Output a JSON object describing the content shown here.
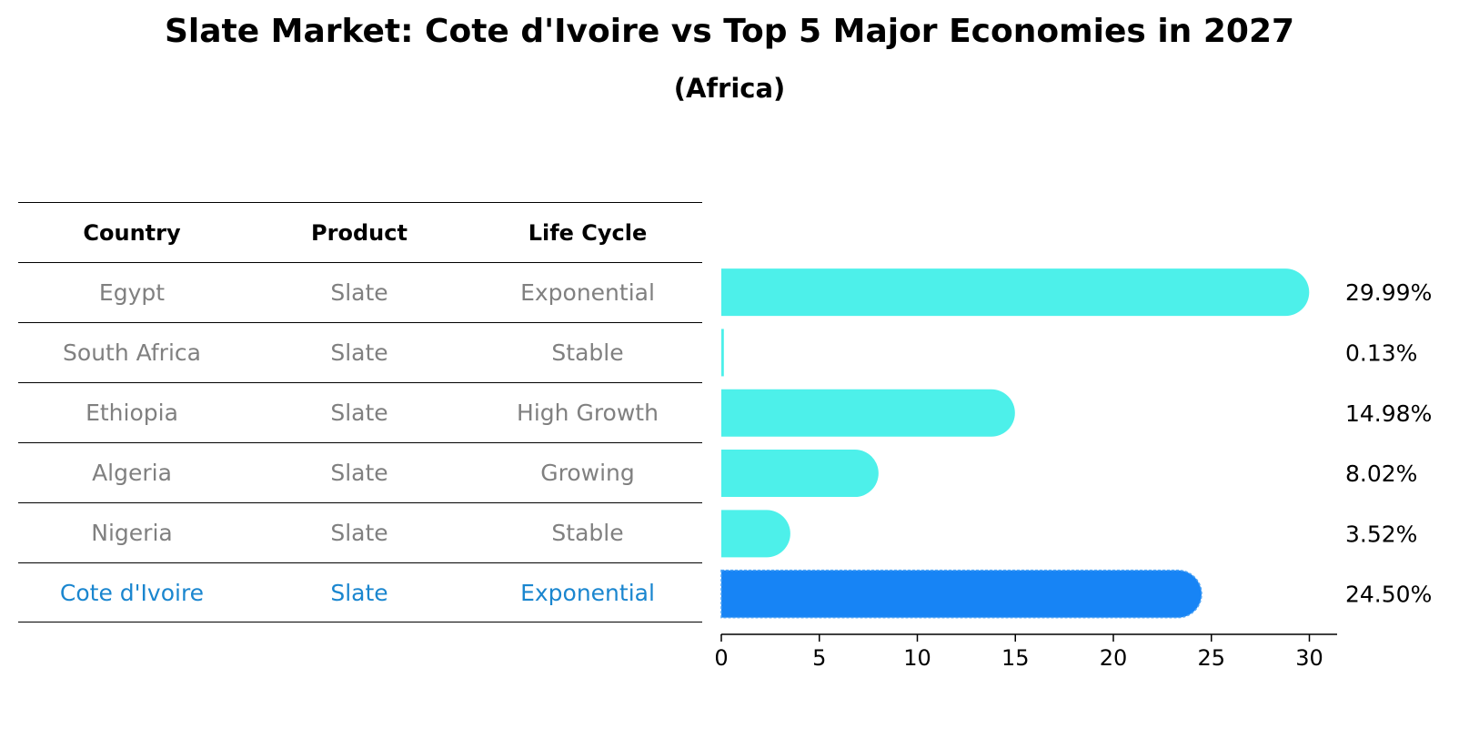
{
  "title": "Slate Market: Cote d'Ivoire vs Top 5 Major Economies in 2027",
  "subtitle": "(Africa)",
  "table": {
    "headers": [
      "Country",
      "Product",
      "Life Cycle"
    ],
    "rows": [
      {
        "country": "Egypt",
        "product": "Slate",
        "life_cycle": "Exponential"
      },
      {
        "country": "South Africa",
        "product": "Slate",
        "life_cycle": "Stable"
      },
      {
        "country": "Ethiopia",
        "product": "Slate",
        "life_cycle": "High Growth"
      },
      {
        "country": "Algeria",
        "product": "Slate",
        "life_cycle": "Growing"
      },
      {
        "country": "Nigeria",
        "product": "Slate",
        "life_cycle": "Stable"
      },
      {
        "country": "Cote d'Ivoire",
        "product": "Slate",
        "life_cycle": "Exponential"
      }
    ]
  },
  "chart_data": {
    "type": "bar",
    "orientation": "horizontal",
    "title": "Slate Market: Cote d'Ivoire vs Top 5 Major Economies in 2027",
    "subtitle": "(Africa)",
    "categories": [
      "Egypt",
      "South Africa",
      "Ethiopia",
      "Algeria",
      "Nigeria",
      "Cote d'Ivoire"
    ],
    "values": [
      29.99,
      0.13,
      14.98,
      8.02,
      3.52,
      24.5
    ],
    "value_labels": [
      "29.99%",
      "0.13%",
      "14.98%",
      "8.02%",
      "3.52%",
      "24.50%"
    ],
    "highlight": "Cote d'Ivoire",
    "xlim": [
      0,
      31.5
    ],
    "xticks": [
      0,
      5,
      10,
      15,
      20,
      25,
      30
    ],
    "xlabel": "",
    "ylabel": "",
    "grid": false,
    "colors": {
      "default": "#4df0ea",
      "highlight": "#1784f5"
    }
  },
  "colors": {
    "highlight_text": "#1a86cf",
    "muted_text": "#808080"
  }
}
